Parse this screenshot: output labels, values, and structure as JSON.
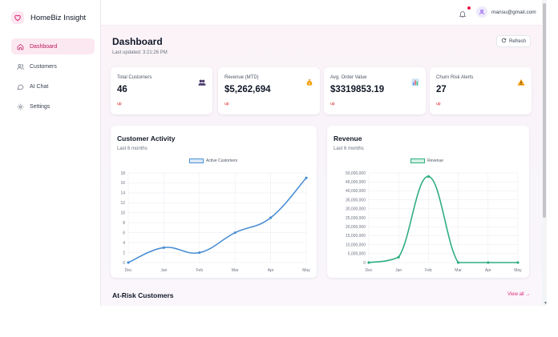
{
  "brand": {
    "name": "HomeBiz Insight",
    "icon": "heart-icon"
  },
  "sidebar": {
    "items": [
      {
        "label": "Dashboard",
        "icon": "home-icon",
        "active": true
      },
      {
        "label": "Customers",
        "icon": "users-icon",
        "active": false
      },
      {
        "label": "AI Chat",
        "icon": "chat-icon",
        "active": false
      },
      {
        "label": "Settings",
        "icon": "gear-icon",
        "active": false
      }
    ]
  },
  "topbar": {
    "user_email": "mansu@gmail.com",
    "has_notification": true
  },
  "header": {
    "title": "Dashboard",
    "last_updated": "Last updated: 3:21:26 PM",
    "refresh_label": "Refresh"
  },
  "stats": [
    {
      "label": "Total Customers",
      "value": "46",
      "trend": "up",
      "icon": "people-icon"
    },
    {
      "label": "Revenue (MTD)",
      "value": "$5,262,694",
      "trend": "up",
      "icon": "money-bag-icon"
    },
    {
      "label": "Avg. Order Value",
      "value": "$3319853.19",
      "trend": "up",
      "icon": "bar-chart-icon"
    },
    {
      "label": "Churn Risk Alerts",
      "value": "27",
      "trend": "up",
      "icon": "warning-icon"
    }
  ],
  "charts": {
    "activity": {
      "title": "Customer Activity",
      "subtitle": "Last 6 months"
    },
    "revenue": {
      "title": "Revenue",
      "subtitle": "Last 6 months"
    }
  },
  "chart_data": [
    {
      "type": "line",
      "title": "Customer Activity",
      "subtitle": "Last 6 months",
      "categories": [
        "Dec",
        "Jan",
        "Feb",
        "Mar",
        "Apr",
        "May"
      ],
      "series": [
        {
          "name": "Active Customers",
          "values": [
            0,
            3,
            2,
            6,
            9,
            17
          ],
          "color": "#4a8fd4"
        }
      ],
      "ylim": [
        0,
        18
      ],
      "yticks": [
        "0",
        "2",
        "4",
        "6",
        "8",
        "10",
        "12",
        "14",
        "16",
        "18"
      ],
      "grid": true,
      "legend": "top"
    },
    {
      "type": "line",
      "title": "Revenue",
      "subtitle": "Last 6 months",
      "categories": [
        "Dec",
        "Jan",
        "Feb",
        "Mar",
        "Apr",
        "May"
      ],
      "series": [
        {
          "name": "Revenue",
          "values": [
            0,
            3000000,
            48000000,
            0,
            0,
            0
          ],
          "color": "#2fae7f"
        }
      ],
      "ylim": [
        0,
        50000000
      ],
      "yticks": [
        "0",
        "5,000,000",
        "10,000,000",
        "15,000,000",
        "20,000,000",
        "25,000,000",
        "30,000,000",
        "35,000,000",
        "40,000,000",
        "45,000,000",
        "50,000,000"
      ],
      "grid": true,
      "legend": "top"
    }
  ],
  "at_risk": {
    "title": "At-Risk Customers",
    "view_all": "View all →"
  },
  "colors": {
    "accent": "#db2777",
    "active_bg": "#fce8f1",
    "trend_up": "#dc2626"
  }
}
